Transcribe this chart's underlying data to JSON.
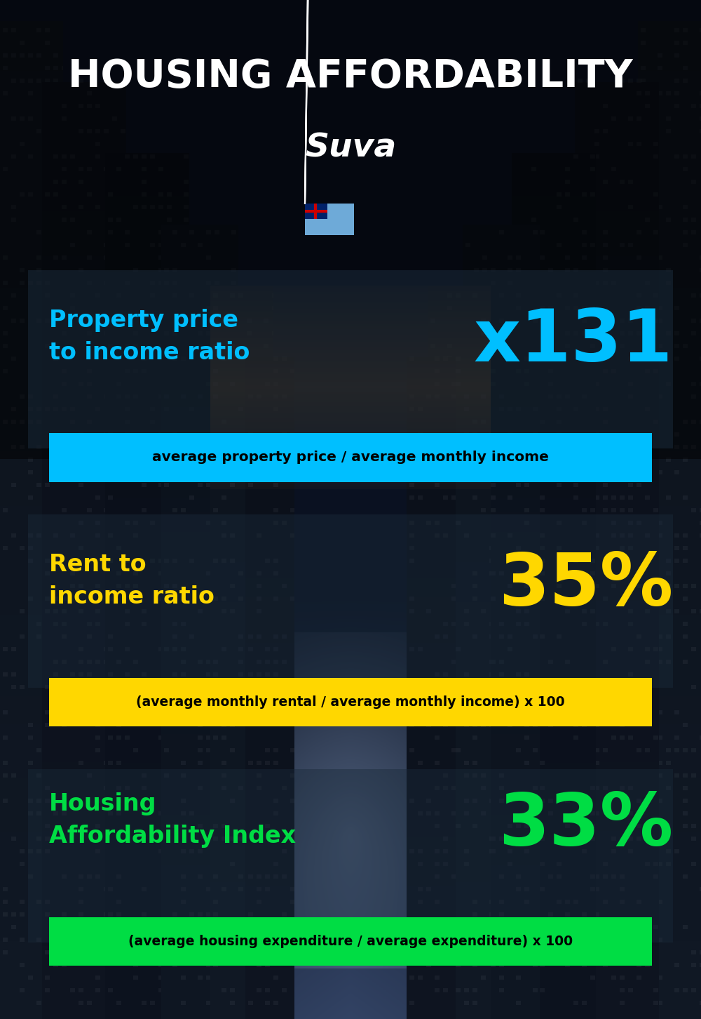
{
  "title_line1": "HOUSING AFFORDABILITY",
  "title_line2": "Suva",
  "flag_emoji": "🇫🇯",
  "section1_label": "Property price\nto income ratio",
  "section1_value": "x131",
  "section1_formula": "average property price / average monthly income",
  "section1_label_color": "#00BFFF",
  "section1_value_color": "#00BFFF",
  "section1_banner_color": "#00BFFF",
  "section1_banner_text_color": "#000000",
  "section2_label": "Rent to\nincome ratio",
  "section2_value": "35%",
  "section2_formula": "(average monthly rental / average monthly income) x 100",
  "section2_label_color": "#FFD700",
  "section2_value_color": "#FFD700",
  "section2_banner_color": "#FFD700",
  "section2_banner_text_color": "#000000",
  "section3_label": "Housing\nAffordability Index",
  "section3_value": "33%",
  "section3_formula": "(average housing expenditure / average expenditure) x 100",
  "section3_label_color": "#00DD44",
  "section3_value_color": "#00DD44",
  "section3_banner_color": "#00DD44",
  "section3_banner_text_color": "#000000",
  "bg_color": "#060c14",
  "title_color": "#FFFFFF",
  "fig_width": 10.0,
  "fig_height": 14.52
}
